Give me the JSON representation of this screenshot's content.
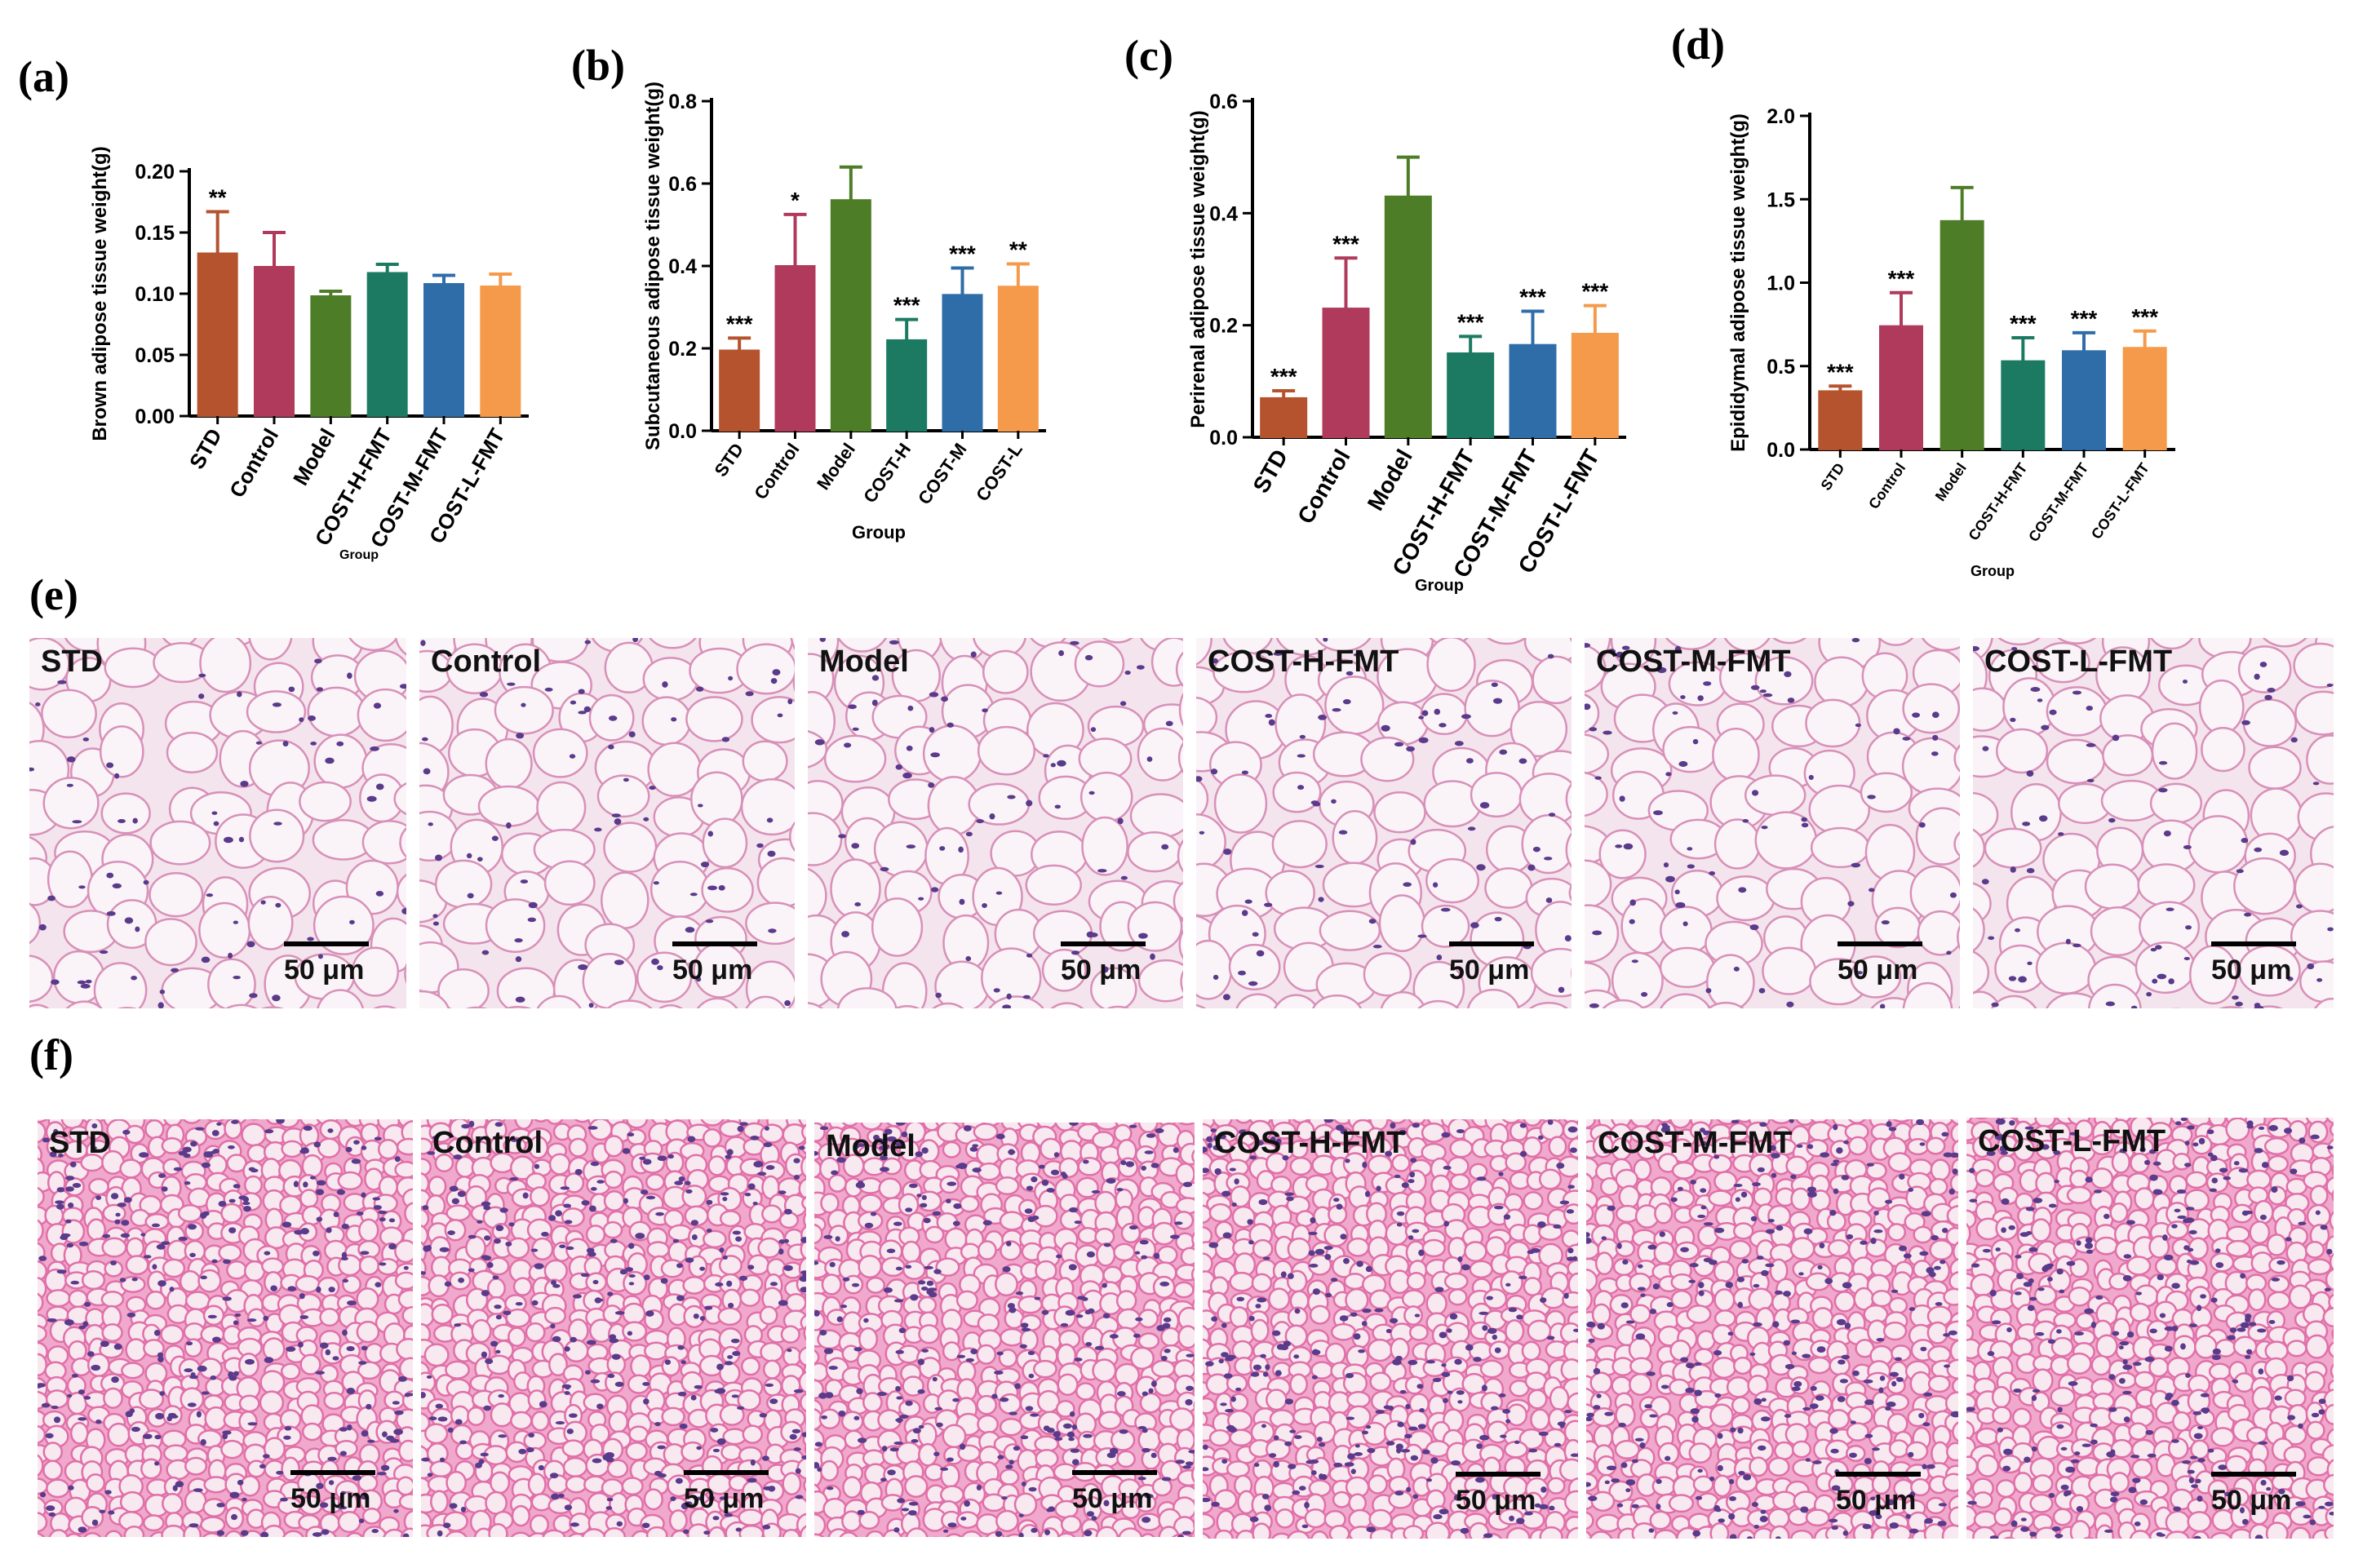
{
  "chart_data": [
    {
      "panel": "(a)",
      "type": "bar",
      "ylabel": "Brown adipose tissue weight(g)",
      "xlabel": "Group",
      "ylim": [
        0,
        0.2
      ],
      "yticks": [
        "0.00",
        "0.05",
        "0.10",
        "0.15",
        "0.20"
      ],
      "categories": [
        "STD",
        "Control",
        "Model",
        "COST-H-FMT",
        "COST-M-FMT",
        "COST-L-FMT"
      ],
      "values": [
        0.133,
        0.122,
        0.098,
        0.117,
        0.108,
        0.106
      ],
      "errors": [
        0.034,
        0.028,
        0.004,
        0.007,
        0.007,
        0.01
      ],
      "significance": [
        "**",
        "",
        "",
        "",
        "",
        ""
      ],
      "colors": [
        "#b5532f",
        "#b03a5b",
        "#4e7d28",
        "#1c7a62",
        "#2f6da8",
        "#f59a4a"
      ]
    },
    {
      "panel": "(b)",
      "type": "bar",
      "ylabel": "Subcutaneous adipose tissue weight(g)",
      "xlabel": "Group",
      "ylim": [
        0,
        0.8
      ],
      "yticks": [
        "0.0",
        "0.2",
        "0.4",
        "0.6",
        "0.8"
      ],
      "categories": [
        "STD",
        "Control",
        "Model",
        "COST-H",
        "COST-M",
        "COST-L"
      ],
      "values": [
        0.195,
        0.4,
        0.56,
        0.22,
        0.33,
        0.35
      ],
      "errors": [
        0.03,
        0.125,
        0.08,
        0.05,
        0.065,
        0.055
      ],
      "significance": [
        "***",
        "*",
        "",
        "***",
        "***",
        "**"
      ],
      "colors": [
        "#b5532f",
        "#b03a5b",
        "#4e7d28",
        "#1c7a62",
        "#2f6da8",
        "#f59a4a"
      ]
    },
    {
      "panel": "(c)",
      "type": "bar",
      "ylabel": "Perirenal adipose tissue weight(g)",
      "xlabel": "Group",
      "ylim": [
        0,
        0.6
      ],
      "yticks": [
        "0.0",
        "0.2",
        "0.4",
        "0.6"
      ],
      "categories": [
        "STD",
        "Control",
        "Model",
        "COST-H-FMT",
        "COST-M-FMT",
        "COST-L-FMT"
      ],
      "values": [
        0.07,
        0.23,
        0.43,
        0.15,
        0.165,
        0.185
      ],
      "errors": [
        0.013,
        0.09,
        0.07,
        0.03,
        0.06,
        0.05
      ],
      "significance": [
        "***",
        "***",
        "",
        "***",
        "***",
        "***"
      ],
      "colors": [
        "#b5532f",
        "#b03a5b",
        "#4e7d28",
        "#1c7a62",
        "#2f6da8",
        "#f59a4a"
      ]
    },
    {
      "panel": "(d)",
      "type": "bar",
      "ylabel": "Epididymal adipose tissue weight(g)",
      "xlabel": "Group",
      "ylim": [
        0,
        2.0
      ],
      "yticks": [
        "0.0",
        "0.5",
        "1.0",
        "1.5",
        "2.0"
      ],
      "categories": [
        "STD",
        "Control",
        "Model",
        "COST-H-FMT",
        "COST-M-FMT",
        "COST-L-FMT"
      ],
      "values": [
        0.35,
        0.74,
        1.37,
        0.53,
        0.59,
        0.61
      ],
      "errors": [
        0.03,
        0.2,
        0.2,
        0.14,
        0.11,
        0.1
      ],
      "significance": [
        "***",
        "***",
        "",
        "***",
        "***",
        "***"
      ],
      "colors": [
        "#b5532f",
        "#b03a5b",
        "#4e7d28",
        "#1c7a62",
        "#2f6da8",
        "#f59a4a"
      ]
    }
  ],
  "micrographs": {
    "e": {
      "letter": "(e)",
      "scale_text": "50 μm",
      "items": [
        "STD",
        "Control",
        "Model",
        "COST-H-FMT",
        "COST-M-FMT",
        "COST-L-FMT"
      ]
    },
    "f": {
      "letter": "(f)",
      "scale_text": "50 μm",
      "items": [
        "STD",
        "Control",
        "Model",
        "COST-H-FMT",
        "COST-M-FMT",
        "COST-L-FMT"
      ]
    }
  }
}
